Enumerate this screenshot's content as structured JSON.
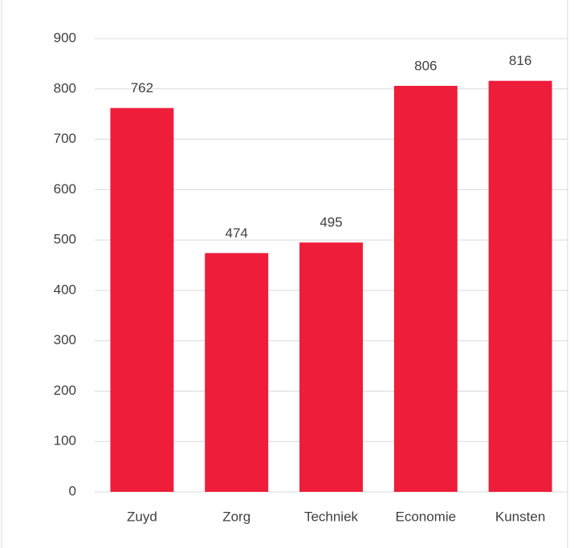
{
  "chart_data": {
    "type": "bar",
    "categories": [
      "Zuyd",
      "Zorg",
      "Techniek",
      "Economie",
      "Kunsten"
    ],
    "values": [
      762,
      474,
      495,
      806,
      816
    ],
    "color": "#ee1d3a",
    "ylim": [
      0,
      900
    ],
    "yticks": [
      0,
      100,
      200,
      300,
      400,
      500,
      600,
      700,
      800,
      900
    ],
    "grid": true
  }
}
